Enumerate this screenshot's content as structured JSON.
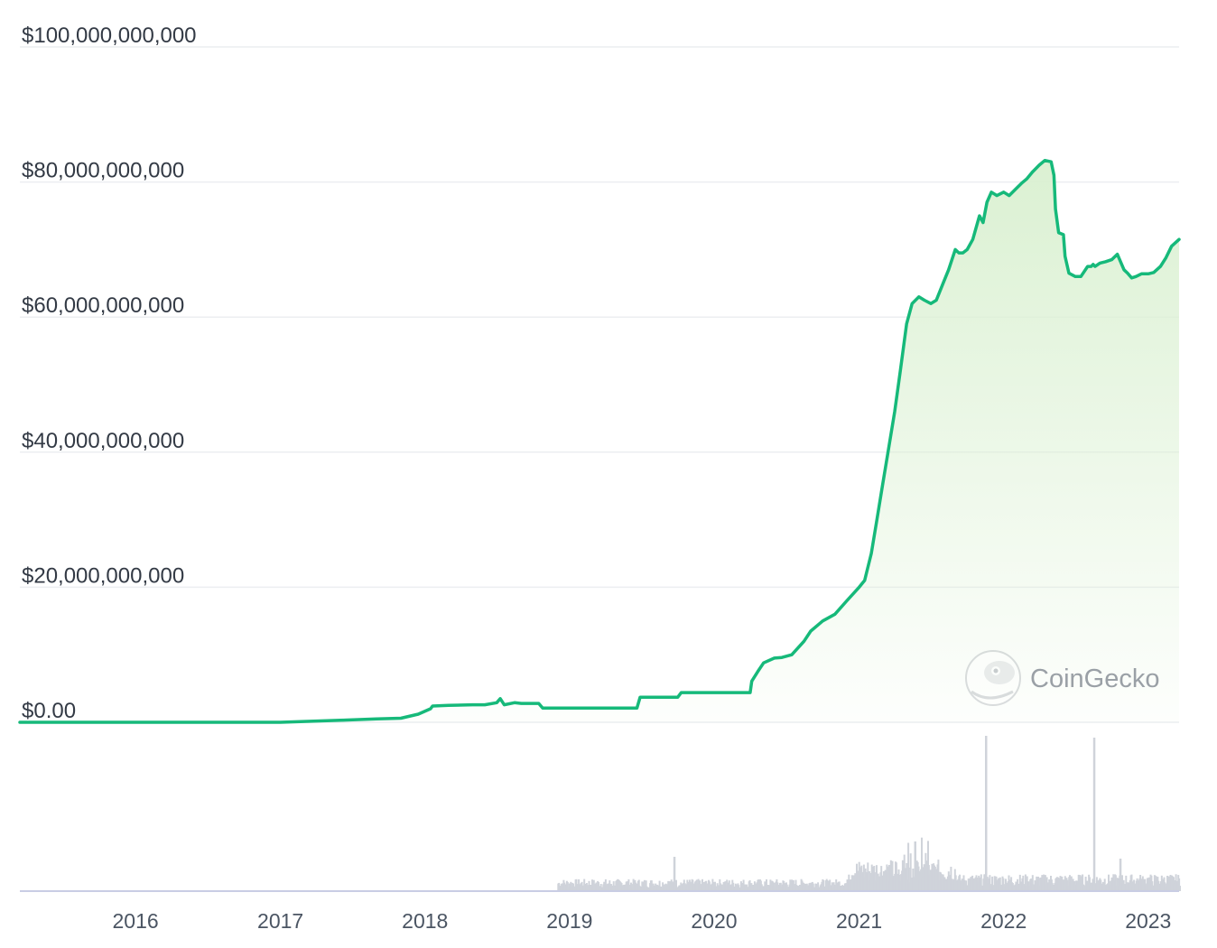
{
  "chart_data": {
    "type": "area",
    "title": "",
    "xlabel": "",
    "ylabel": "",
    "ylim": [
      0,
      100000000000
    ],
    "xlim": [
      "2015-03-15",
      "2023-03-20"
    ],
    "y_tick_labels": [
      "$100,000,000,000",
      "$80,000,000,000",
      "$60,000,000,000",
      "$40,000,000,000",
      "$20,000,000,000",
      "$0.00"
    ],
    "y_tick_values": [
      100000000000,
      80000000000,
      60000000000,
      40000000000,
      20000000000,
      0
    ],
    "x_tick_labels": [
      "2016",
      "2017",
      "2018",
      "2019",
      "2020",
      "2021",
      "2022",
      "2023"
    ],
    "x_tick_dates": [
      "2016-01-01",
      "2017-01-01",
      "2018-01-01",
      "2019-01-01",
      "2020-01-01",
      "2021-01-01",
      "2022-01-01",
      "2023-01-01"
    ],
    "grid": true,
    "watermark": "CoinGecko",
    "colors": {
      "line": "#16b97a",
      "area_top": "#d9f0d0",
      "grid": "#eceef1",
      "volume": "#cfd3da"
    },
    "series": [
      {
        "x": [
          "2015-03-15",
          "2016-01-01",
          "2017-01-01",
          "2017-06-01",
          "2017-09-01",
          "2017-11-01",
          "2017-12-15",
          "2018-01-15",
          "2018-01-20",
          "2018-03-01",
          "2018-05-01",
          "2018-06-01",
          "2018-07-01",
          "2018-07-10",
          "2018-07-20",
          "2018-08-15",
          "2018-09-01",
          "2018-10-15",
          "2018-10-25",
          "2019-01-01",
          "2019-04-01",
          "2019-06-20",
          "2019-06-28",
          "2019-10-01",
          "2019-10-10",
          "2020-02-01",
          "2020-04-01",
          "2020-04-05",
          "2020-04-20",
          "2020-05-05",
          "2020-06-01",
          "2020-06-20",
          "2020-07-15",
          "2020-08-15",
          "2020-09-01",
          "2020-10-01",
          "2020-11-01",
          "2020-12-01",
          "2021-01-01",
          "2021-01-15",
          "2021-02-01",
          "2021-02-15",
          "2021-03-01",
          "2021-03-15",
          "2021-04-01",
          "2021-04-15",
          "2021-05-01",
          "2021-05-15",
          "2021-06-01",
          "2021-06-15",
          "2021-07-01",
          "2021-07-15",
          "2021-08-01",
          "2021-08-15",
          "2021-09-01",
          "2021-09-10",
          "2021-09-20",
          "2021-10-01",
          "2021-10-15",
          "2021-11-01",
          "2021-11-10",
          "2021-11-20",
          "2021-12-01",
          "2021-12-15",
          "2022-01-01",
          "2022-01-15",
          "2022-02-01",
          "2022-02-15",
          "2022-03-01",
          "2022-03-15",
          "2022-04-01",
          "2022-04-15",
          "2022-05-01",
          "2022-05-08",
          "2022-05-12",
          "2022-05-20",
          "2022-06-01",
          "2022-06-05",
          "2022-06-15",
          "2022-07-01",
          "2022-07-15",
          "2022-08-01",
          "2022-08-10",
          "2022-08-15",
          "2022-08-20",
          "2022-09-01",
          "2022-09-15",
          "2022-10-01",
          "2022-10-15",
          "2022-11-01",
          "2022-11-10",
          "2022-11-20",
          "2022-12-01",
          "2022-12-15",
          "2023-01-01",
          "2023-01-15",
          "2023-02-01",
          "2023-02-15",
          "2023-03-01",
          "2023-03-20"
        ],
        "values": [
          0,
          0,
          0,
          0.3,
          0.5,
          0.6,
          1.2,
          2.0,
          2.4,
          2.5,
          2.6,
          2.6,
          2.9,
          3.5,
          2.6,
          2.9,
          2.8,
          2.8,
          2.1,
          2.1,
          2.1,
          2.1,
          3.7,
          3.7,
          4.4,
          4.4,
          4.4,
          6.1,
          7.5,
          8.8,
          9.5,
          9.6,
          10.0,
          12.0,
          13.5,
          15.0,
          16.0,
          18.0,
          20.0,
          21.0,
          25.0,
          30.0,
          35.0,
          40.0,
          46.0,
          52.0,
          59.0,
          62.0,
          63.0,
          62.5,
          62.0,
          62.5,
          65.0,
          67.0,
          70.0,
          69.5,
          69.5,
          70.0,
          71.5,
          75.0,
          74.0,
          77.0,
          78.5,
          78.0,
          78.5,
          78.0,
          79.0,
          79.8,
          80.5,
          81.5,
          82.5,
          83.2,
          83.0,
          81.0,
          76.0,
          72.5,
          72.2,
          69.0,
          66.5,
          66.0,
          66.0,
          67.5,
          67.5,
          67.8,
          67.5,
          68.0,
          68.2,
          68.5,
          69.3,
          67.0,
          66.5,
          65.8,
          66.0,
          66.4,
          66.4,
          66.6,
          67.5,
          68.8,
          70.5,
          71.5
        ],
        "value_unit": "billion USD"
      }
    ]
  }
}
